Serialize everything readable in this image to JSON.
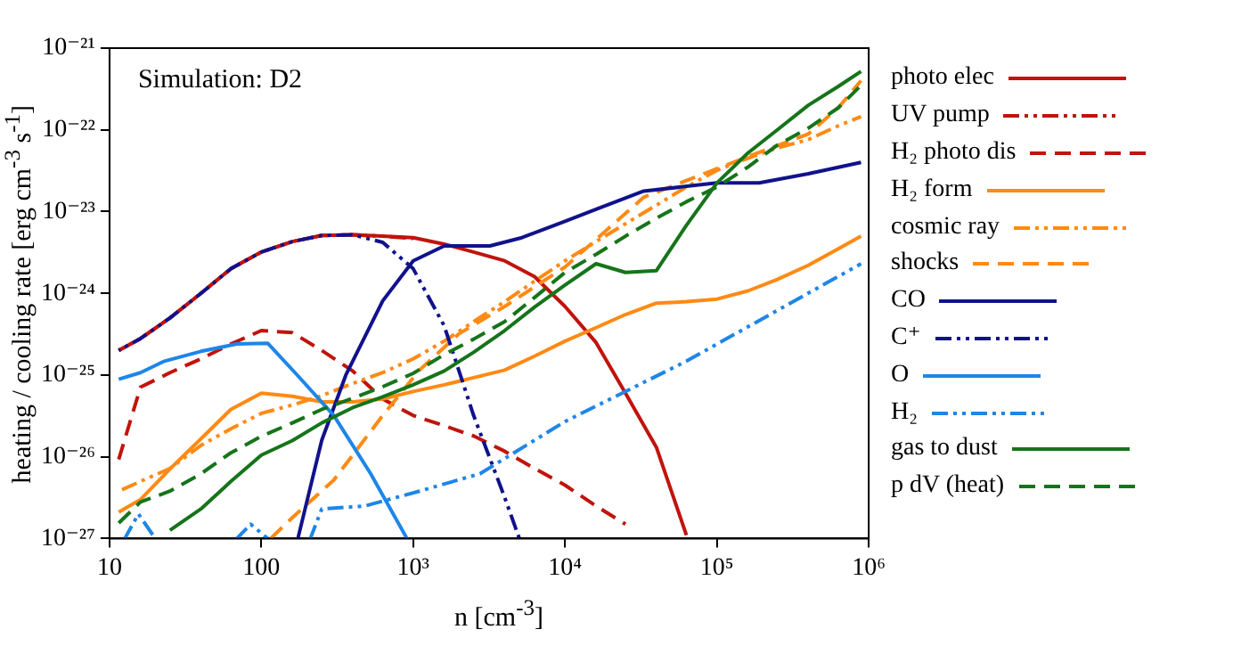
{
  "chart_data": {
    "type": "line",
    "xlabel": "n [cm$^{-3}$]",
    "ylabel": "heating / cooling rate [erg cm$^{-3}$ s$^{-1}$]",
    "annotations": [
      "Simulation: D2"
    ],
    "log": "xy",
    "grid": false,
    "legend": "right",
    "xlim": [
      10,
      1000000
    ],
    "ylim": [
      1e-27,
      1e-21
    ],
    "xticks": [
      10,
      100,
      {
        "value": 1000,
        "label": "10³"
      },
      {
        "value": 10000,
        "label": "10⁴"
      },
      {
        "value": 100000,
        "label": "10⁵"
      },
      {
        "value": 1000000,
        "label": "10⁶"
      }
    ],
    "yticks": [
      {
        "value": 1e-27,
        "label": "10⁻²⁷"
      },
      {
        "value": 1e-26,
        "label": "10⁻²⁶"
      },
      {
        "value": 1e-25,
        "label": "10⁻²⁵"
      },
      {
        "value": 1e-24,
        "label": "10⁻²⁴"
      },
      {
        "value": 1e-23,
        "label": "10⁻²³"
      },
      {
        "value": 1e-22,
        "label": "10⁻²²"
      },
      {
        "value": 1e-21,
        "label": "10⁻²¹"
      }
    ],
    "x": [
      11.5,
      16,
      25,
      40,
      63,
      100,
      160,
      250,
      400,
      630,
      1000,
      1600,
      2500,
      4000,
      6300,
      10000,
      16000,
      25000,
      40000,
      63000,
      100000,
      160000,
      250000,
      400000,
      630000,
      890000
    ],
    "series": [
      {
        "name": "photo elec",
        "color": "#c0140c",
        "line_style": "solid",
        "values": [
          2e-25,
          2.8e-25,
          5e-25,
          1e-24,
          2e-24,
          3.2e-24,
          4.3e-24,
          5.1e-24,
          5.2e-24,
          5e-24,
          4.8e-24,
          4e-24,
          3.2e-24,
          2.5e-24,
          1.6e-24,
          6.9e-25,
          2.5e-25,
          6e-26,
          1.3e-26,
          1.1e-27,
          null,
          null,
          null,
          null,
          null,
          null
        ]
      },
      {
        "name": "UV pump",
        "color": "#c0140c",
        "line_style": "dotted",
        "x": [
          11.5,
          16,
          25,
          40,
          63,
          100,
          160,
          250,
          400,
          630,
          1000
        ],
        "values": [
          2e-25,
          2.8e-25,
          5e-25,
          1e-24,
          2e-24,
          3.2e-24,
          4.3e-24,
          5.1e-24,
          5.2e-24,
          5e-24,
          4.7e-24
        ]
      },
      {
        "name": "H₂ photo dis",
        "color": "#c0140c",
        "line_style": "dashed",
        "values": [
          9.3e-27,
          7.1e-26,
          1.07e-25,
          1.58e-25,
          2.4e-25,
          3.5e-25,
          3.3e-25,
          2e-25,
          1.12e-25,
          5.1e-26,
          3.2e-26,
          2.4e-26,
          1.8e-26,
          1.17e-26,
          7.2e-27,
          4.5e-27,
          2.5e-27,
          1.5e-27,
          null,
          null,
          null,
          null,
          null,
          null,
          null,
          null
        ]
      },
      {
        "name": "H₂ form",
        "color": "#ff8a14",
        "line_style": "solid",
        "values": [
          2.1e-27,
          3e-27,
          7.1e-27,
          1.66e-26,
          3.8e-26,
          6e-26,
          5.5e-26,
          4.7e-26,
          4.7e-26,
          5.1e-26,
          6.3e-26,
          7.6e-26,
          9.3e-26,
          1.15e-25,
          1.7e-25,
          2.6e-25,
          3.8e-25,
          5.5e-25,
          7.6e-25,
          7.9e-25,
          8.5e-25,
          1.07e-24,
          1.48e-24,
          2.2e-24,
          3.5e-24,
          5e-24
        ]
      },
      {
        "name": "cosmic ray",
        "color": "#ff8a14",
        "line_style": "dotted",
        "values": [
          3.8e-27,
          5e-27,
          7.2e-27,
          1.38e-26,
          2.2e-26,
          3.4e-26,
          4.3e-26,
          5.6e-26,
          7.9e-26,
          1.07e-25,
          1.58e-25,
          2.6e-25,
          4.5e-25,
          7.9e-25,
          1.41e-24,
          2.5e-24,
          4.3e-24,
          7.1e-24,
          1.2e-23,
          2e-23,
          3.2e-23,
          4.5e-23,
          6e-23,
          7.6e-23,
          1.12e-22,
          1.45e-22
        ]
      },
      {
        "name": "shocks",
        "color": "#ff8a14",
        "line_style": "dashed",
        "x": [
          115,
          160,
          300,
          630,
          1100,
          2000,
          4000,
          10000,
          33000,
          160000,
          400000,
          630000,
          890000
        ],
        "values": [
          1e-27,
          1.8e-27,
          5.2e-27,
          3.2e-26,
          1.15e-25,
          3.2e-25,
          6.9e-25,
          2.1e-24,
          1.5e-23,
          4.7e-23,
          8.9e-23,
          1.86e-22,
          4e-22
        ]
      },
      {
        "name": "CO",
        "color": "#10128c",
        "line_style": "solid",
        "x": [
          174,
          250,
          360,
          630,
          1000,
          1600,
          3200,
          5200,
          10000,
          16000,
          33000,
          100000,
          190000,
          400000,
          890000
        ],
        "values": [
          1e-27,
          1.6e-26,
          1e-25,
          8.1e-25,
          2.5e-24,
          3.8e-24,
          3.8e-24,
          4.8e-24,
          7.6e-24,
          1.07e-23,
          1.78e-23,
          2.24e-23,
          2.24e-23,
          2.9e-23,
          4e-23
        ]
      },
      {
        "name": "C⁺",
        "color": "#10128c",
        "line_style": "dotted",
        "x": [
          11.5,
          16,
          25,
          40,
          63,
          100,
          160,
          250,
          400,
          630,
          1000,
          1600,
          2500,
          4000,
          5000
        ],
        "values": [
          2e-25,
          2.8e-25,
          5e-25,
          1e-24,
          2e-24,
          3.2e-24,
          4.3e-24,
          5.1e-24,
          5.2e-24,
          4.2e-24,
          2e-24,
          4e-25,
          3.2e-26,
          3.2e-27,
          1e-27
        ]
      },
      {
        "name": "O",
        "color": "#1e86e8",
        "line_style": "solid",
        "x": [
          11.5,
          16,
          23,
          40,
          69,
          110,
          174,
          300,
          525,
          910
        ],
        "values": [
          8.9e-26,
          1.07e-25,
          1.48e-25,
          1.95e-25,
          2.4e-25,
          2.45e-25,
          9.8e-26,
          3.2e-26,
          6.2e-27,
          1e-27
        ]
      },
      {
        "name": "H₂",
        "color": "#1e86e8",
        "line_style": "dotted",
        "x": [
          12.6,
          15.5,
          20,
          40,
          69,
          85,
          110,
          150,
          210,
          250,
          480,
          1100,
          2750,
          10000,
          63000,
          890000
        ],
        "values": [
          1e-27,
          2e-27,
          1e-27,
          null,
          1e-27,
          1.5e-27,
          1e-27,
          null,
          1e-27,
          2.3e-27,
          2.5e-27,
          3.8e-27,
          6.2e-27,
          2.7e-26,
          1.48e-25,
          2.3e-24
        ]
      },
      {
        "name": "gas to dust",
        "color": "#16741a",
        "line_style": "solid",
        "values": [
          null,
          null,
          1.26e-27,
          2.3e-27,
          5e-27,
          1.05e-26,
          1.58e-26,
          2.6e-26,
          4e-26,
          5.4e-26,
          7.6e-26,
          1.12e-25,
          1.9e-25,
          3.5e-25,
          6.8e-25,
          1.26e-24,
          2.3e-24,
          1.8e-24,
          1.9e-24,
          6.8e-24,
          2.24e-23,
          5.2e-23,
          1e-22,
          2e-22,
          3.4e-22,
          5.2e-22
        ]
      },
      {
        "name": "p dV (heat)",
        "color": "#16741a",
        "line_style": "dashed",
        "values": [
          1.55e-27,
          2.8e-27,
          3.8e-27,
          6.2e-27,
          1.12e-26,
          1.78e-26,
          2.6e-26,
          3.8e-26,
          5.2e-26,
          7.2e-26,
          1.05e-25,
          1.78e-25,
          2.75e-25,
          4.5e-25,
          8.9e-25,
          1.8e-24,
          3e-24,
          5e-24,
          8.3e-24,
          1.32e-23,
          2e-23,
          3.5e-23,
          6.5e-23,
          1.05e-22,
          1.86e-22,
          3.5e-22
        ]
      }
    ]
  }
}
